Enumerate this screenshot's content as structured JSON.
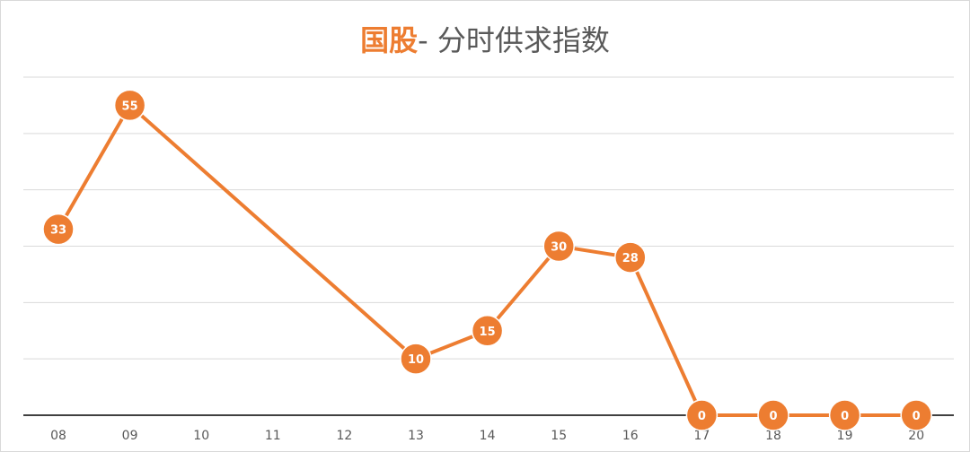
{
  "chart_data": {
    "type": "line",
    "title_accent": "国股",
    "title_rest": "- 分时供求指数",
    "categories": [
      "08",
      "09",
      "10",
      "11",
      "12",
      "13",
      "14",
      "15",
      "16",
      "17",
      "18",
      "19",
      "20"
    ],
    "series": [
      {
        "values": [
          33,
          55,
          null,
          null,
          null,
          10,
          15,
          30,
          28,
          0,
          0,
          0,
          0
        ]
      }
    ],
    "ylim": [
      0,
      60
    ],
    "grid": true,
    "colors": {
      "line": "#ed7d31",
      "grid": "#d9d9d9",
      "axis": "#404040"
    }
  }
}
